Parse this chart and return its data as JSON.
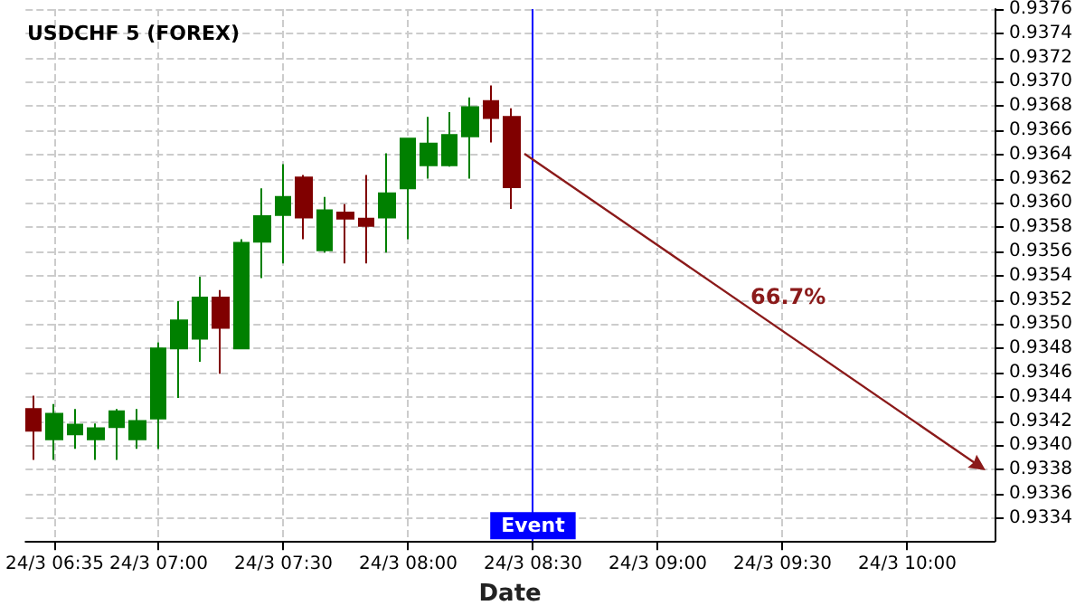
{
  "chart_data": {
    "type": "candlestick",
    "title": "USDCHF 5 (FOREX)",
    "xlabel": "Date",
    "x": [
      "--03-24T06:30",
      "--03-24T06:35",
      "--03-24T06:40",
      "--03-24T06:45",
      "--03-24T06:50",
      "--03-24T06:55",
      "--03-24T07:00",
      "--03-24T07:05",
      "--03-24T07:10",
      "--03-24T07:15",
      "--03-24T07:20",
      "--03-24T07:25",
      "--03-24T07:30",
      "--03-24T07:35",
      "--03-24T07:40",
      "--03-24T07:45",
      "--03-24T07:50",
      "--03-24T07:55",
      "--03-24T08:00",
      "--03-24T08:05",
      "--03-24T08:10",
      "--03-24T08:15",
      "--03-24T08:20",
      "--03-24T08:25"
    ],
    "ohlc": [
      [
        0.9343,
        0.93441,
        0.93388,
        0.93412
      ],
      [
        0.93405,
        0.93434,
        0.93388,
        0.93426
      ],
      [
        0.93409,
        0.9343,
        0.93397,
        0.93417
      ],
      [
        0.93405,
        0.93418,
        0.93388,
        0.93414
      ],
      [
        0.93415,
        0.9343,
        0.93388,
        0.93428
      ],
      [
        0.93405,
        0.9343,
        0.93397,
        0.9342
      ],
      [
        0.93422,
        0.93485,
        0.93397,
        0.9348
      ],
      [
        0.9348,
        0.93519,
        0.93439,
        0.93503
      ],
      [
        0.93488,
        0.93539,
        0.93469,
        0.93522
      ],
      [
        0.93522,
        0.93528,
        0.93459,
        0.93497
      ],
      [
        0.9348,
        0.9357,
        0.9348,
        0.93567
      ],
      [
        0.93568,
        0.93612,
        0.93538,
        0.93589
      ],
      [
        0.9359,
        0.93632,
        0.9355,
        0.93605
      ],
      [
        0.93621,
        0.93623,
        0.9357,
        0.93588
      ],
      [
        0.93561,
        0.93605,
        0.93559,
        0.93594
      ],
      [
        0.93592,
        0.93599,
        0.9355,
        0.93587
      ],
      [
        0.93587,
        0.93623,
        0.9355,
        0.93581
      ],
      [
        0.93588,
        0.93641,
        0.93559,
        0.93608
      ],
      [
        0.93612,
        0.93653,
        0.9357,
        0.93653
      ],
      [
        0.93631,
        0.93671,
        0.9362,
        0.93649
      ],
      [
        0.93631,
        0.93675,
        0.9363,
        0.93656
      ],
      [
        0.93655,
        0.93687,
        0.9362,
        0.93679
      ],
      [
        0.93684,
        0.93697,
        0.9365,
        0.9367
      ],
      [
        0.93671,
        0.93678,
        0.93595,
        0.93613
      ]
    ],
    "colors": [
      "#800000",
      "#008000",
      "#008000",
      "#008000",
      "#008000",
      "#008000",
      "#008000",
      "#008000",
      "#008000",
      "#800000",
      "#008000",
      "#008000",
      "#008000",
      "#800000",
      "#008000",
      "#800000",
      "#800000",
      "#008000",
      "#008000",
      "#008000",
      "#008000",
      "#008000",
      "#800000",
      "#800000"
    ],
    "annotations": [
      "66.7%"
    ],
    "ref_lines": [
      {
        "axis": "x",
        "value": "--03-24T08:30",
        "label": "Event",
        "color": "#0000ff"
      }
    ],
    "xlim": [
      "--03-24T06:28",
      "--03-24T10:21"
    ],
    "xticks": [
      {
        "value": "--03-24T06:35",
        "label": "24/3 06:35"
      },
      {
        "value": "--03-24T07:00",
        "label": "24/3 07:00"
      },
      {
        "value": "--03-24T07:30",
        "label": "24/3 07:30"
      },
      {
        "value": "--03-24T08:00",
        "label": "24/3 08:00"
      },
      {
        "value": "--03-24T08:30",
        "label": "24/3 08:30"
      },
      {
        "value": "--03-24T09:00",
        "label": "24/3 09:00"
      },
      {
        "value": "--03-24T09:30",
        "label": "24/3 09:30"
      },
      {
        "value": "--03-24T10:00",
        "label": "24/3 10:00"
      }
    ],
    "ylim": [
      0.93321,
      0.9376
    ],
    "yticks": [
      {
        "value": 0.9334,
        "label": "0.9334"
      },
      {
        "value": 0.9336,
        "label": "0.9336"
      },
      {
        "value": 0.9338,
        "label": "0.9338"
      },
      {
        "value": 0.934,
        "label": "0.9340"
      },
      {
        "value": 0.9342,
        "label": "0.9342"
      },
      {
        "value": 0.9344,
        "label": "0.9344"
      },
      {
        "value": 0.9346,
        "label": "0.9346"
      },
      {
        "value": 0.9348,
        "label": "0.9348"
      },
      {
        "value": 0.935,
        "label": "0.9350"
      },
      {
        "value": 0.9352,
        "label": "0.9352"
      },
      {
        "value": 0.9354,
        "label": "0.9354"
      },
      {
        "value": 0.9356,
        "label": "0.9356"
      },
      {
        "value": 0.9358,
        "label": "0.9358"
      },
      {
        "value": 0.936,
        "label": "0.9360"
      },
      {
        "value": 0.9362,
        "label": "0.9362"
      },
      {
        "value": 0.9364,
        "label": "0.9364"
      },
      {
        "value": 0.9366,
        "label": "0.9366"
      },
      {
        "value": 0.9368,
        "label": "0.9368"
      },
      {
        "value": 0.937,
        "label": "0.9370"
      },
      {
        "value": 0.9372,
        "label": "0.9372"
      },
      {
        "value": 0.9374,
        "label": "0.9374"
      },
      {
        "value": 0.9376,
        "label": "0.9376"
      }
    ],
    "grid": true
  }
}
